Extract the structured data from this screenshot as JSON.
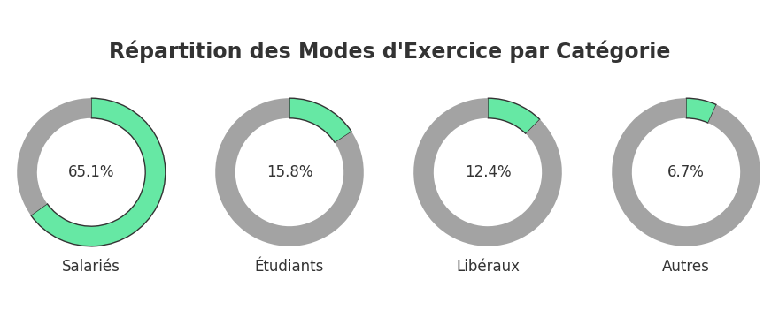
{
  "chart_data": {
    "type": "pie",
    "title": "Répartition des Modes d'Exercice par Catégorie",
    "categories": [
      "Salariés",
      "Étudiants",
      "Libéraux",
      "Autres"
    ],
    "values": [
      65.1,
      15.8,
      12.4,
      6.7
    ],
    "value_labels": [
      "65.1%",
      "15.8%",
      "12.4%",
      "6.7%"
    ],
    "ylim": [
      0,
      100
    ],
    "color": "#66e8a4",
    "data_labels": true
  }
}
